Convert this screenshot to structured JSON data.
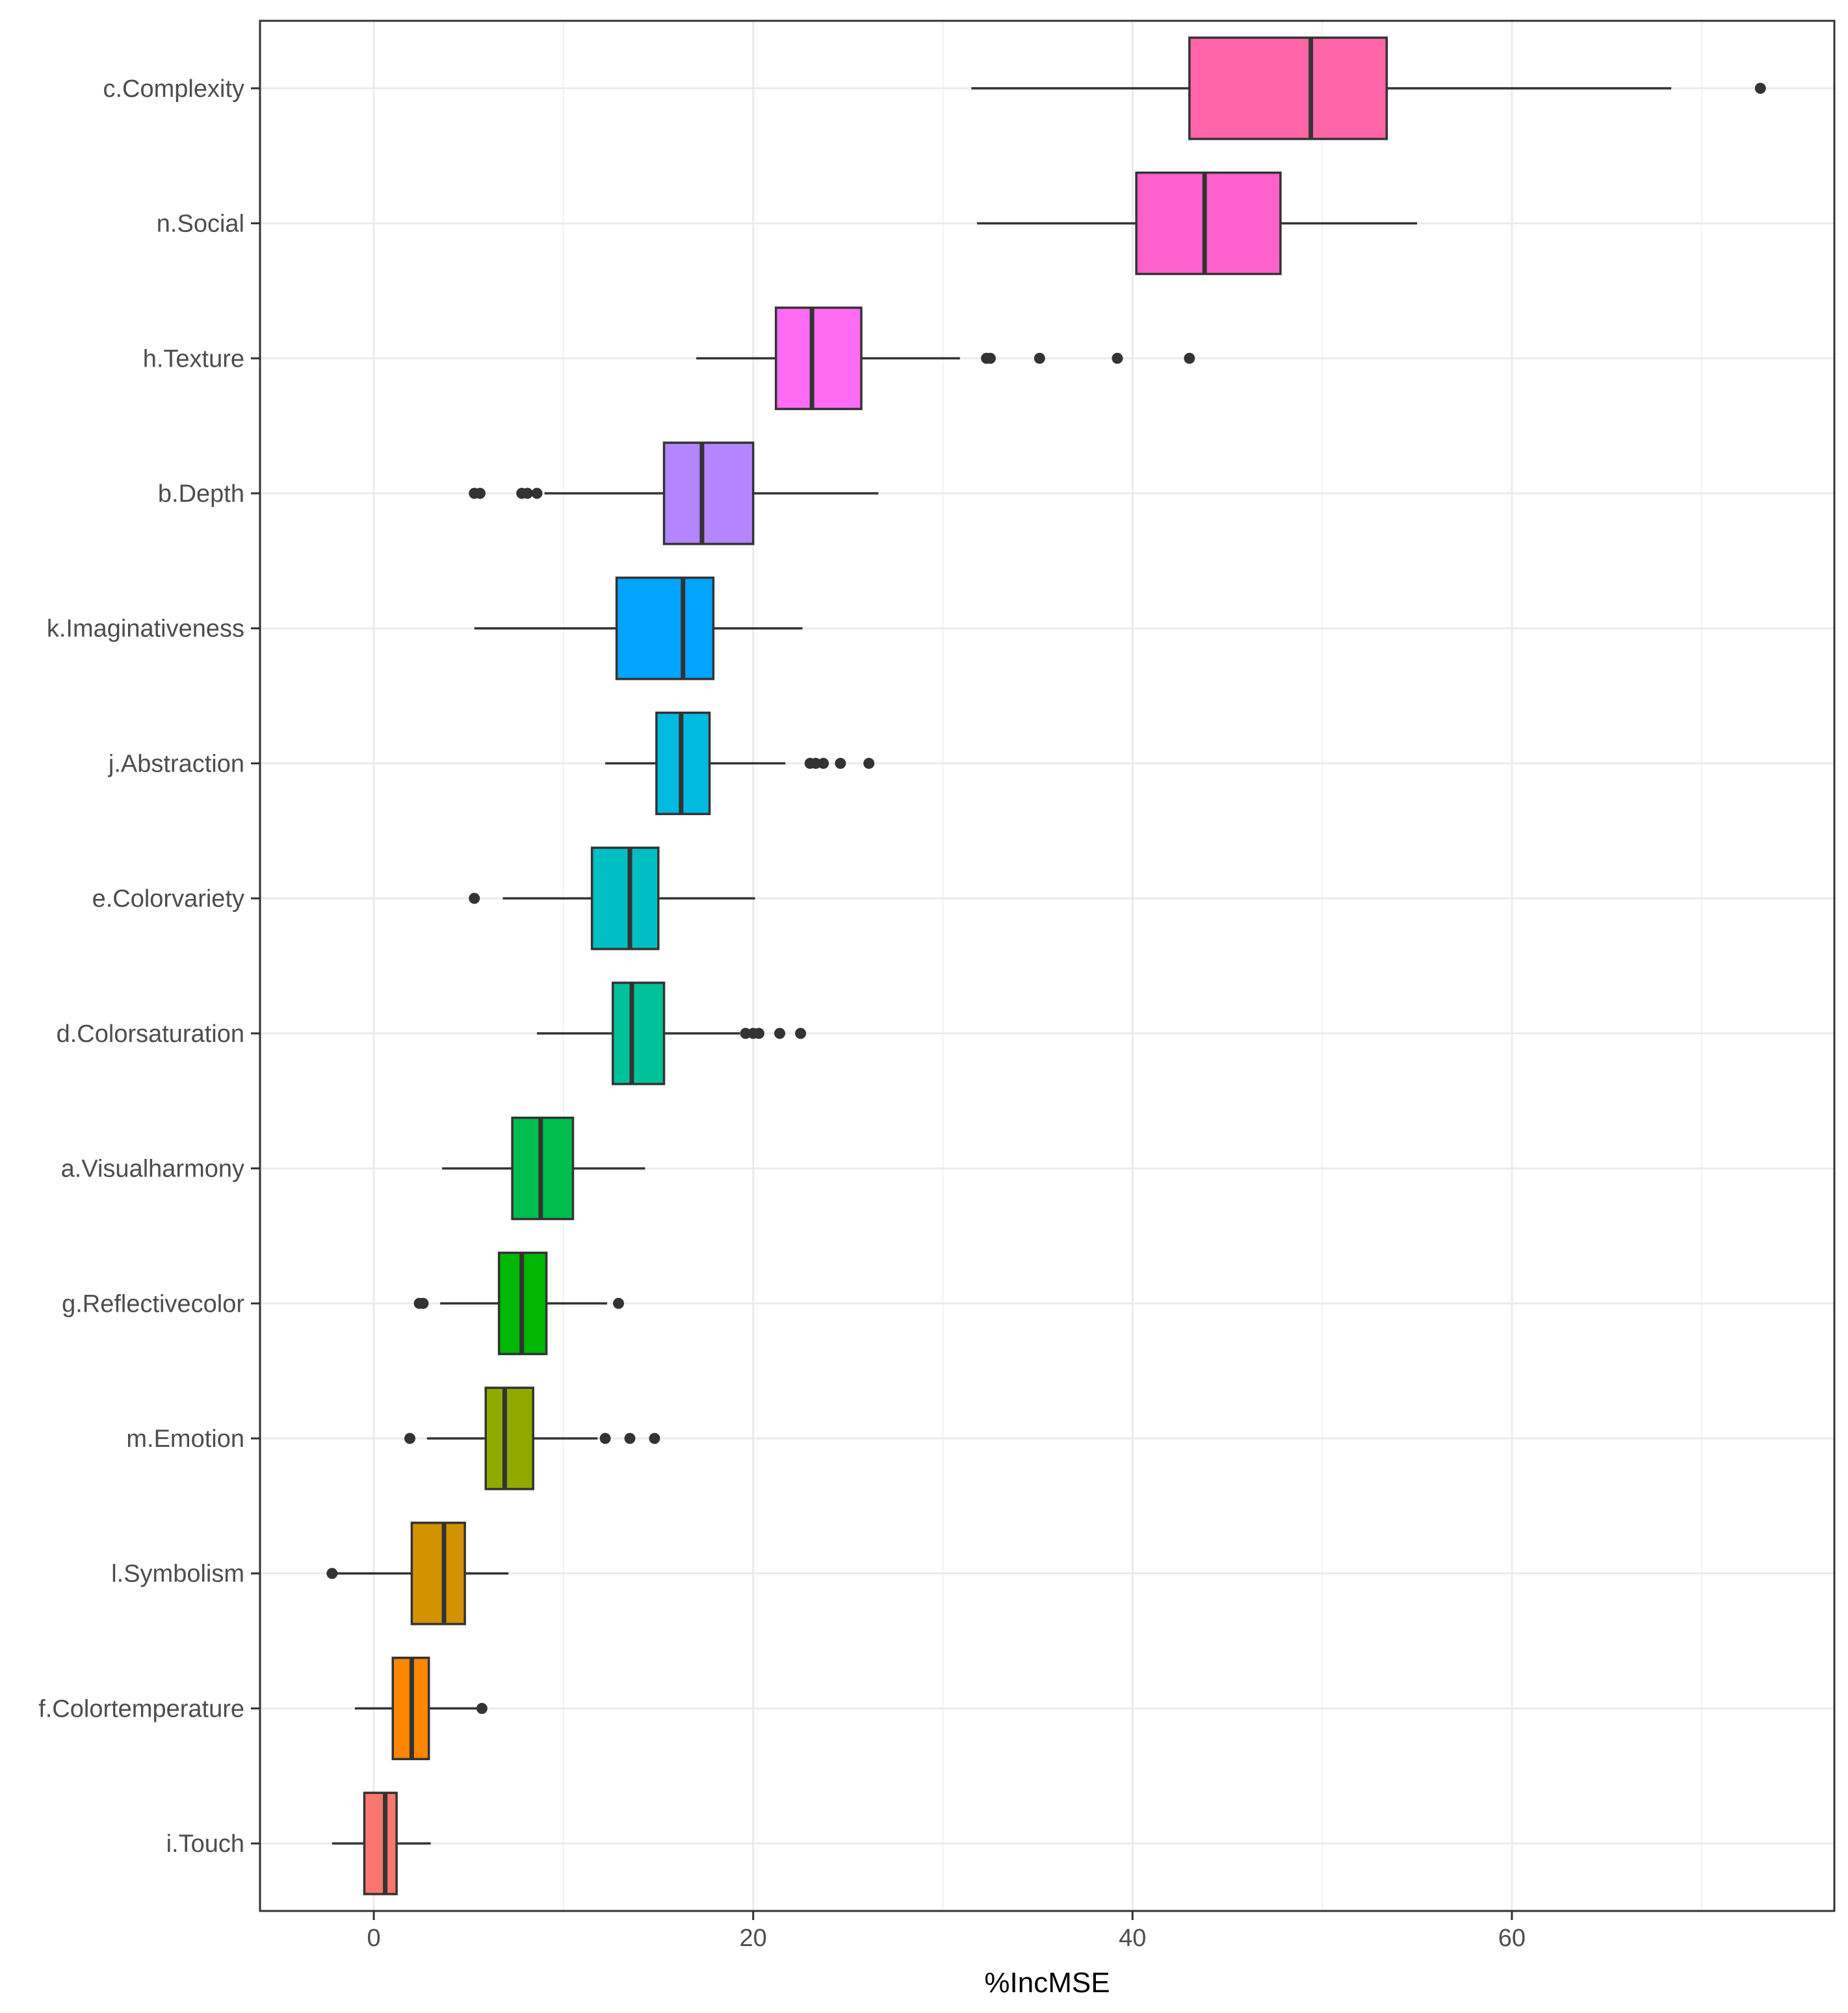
{
  "chart_data": {
    "type": "boxplot",
    "title": "",
    "xlabel": "%IncMSE",
    "ylabel": "",
    "xlim": [
      -6,
      77
    ],
    "x_ticks": [
      0,
      20,
      40,
      60
    ],
    "x_tick_labels": [
      "0",
      "20",
      "40",
      "60"
    ],
    "grid": true,
    "legend": "none",
    "series": [
      {
        "name": "c.Complexity",
        "color": "#FF66A8",
        "whisker_low": 31.5,
        "q1": 43.0,
        "median": 49.4,
        "q3": 53.4,
        "whisker_high": 68.4,
        "outliers": [
          73.1
        ]
      },
      {
        "name": "n.Social",
        "color": "#FF61CC",
        "whisker_low": 31.8,
        "q1": 40.2,
        "median": 43.8,
        "q3": 47.8,
        "whisker_high": 55.0,
        "outliers": []
      },
      {
        "name": "h.Texture",
        "color": "#FF6CF3",
        "whisker_low": 17.0,
        "q1": 21.2,
        "median": 23.1,
        "q3": 25.7,
        "whisker_high": 30.9,
        "outliers": [
          32.3,
          32.5,
          35.1,
          39.2,
          43.0
        ]
      },
      {
        "name": "b.Depth",
        "color": "#B385FF",
        "whisker_low": 9.0,
        "q1": 15.3,
        "median": 17.3,
        "q3": 20.0,
        "whisker_high": 26.6,
        "outliers": [
          5.3,
          5.6,
          7.8,
          8.1,
          8.6
        ]
      },
      {
        "name": "k.Imaginativeness",
        "color": "#00A5FF",
        "whisker_low": 5.3,
        "q1": 12.8,
        "median": 16.3,
        "q3": 17.9,
        "whisker_high": 22.6,
        "outliers": []
      },
      {
        "name": "j.Abstraction",
        "color": "#00BAE0",
        "whisker_low": 12.2,
        "q1": 14.9,
        "median": 16.2,
        "q3": 17.7,
        "whisker_high": 21.7,
        "outliers": [
          23.0,
          23.3,
          23.7,
          24.6,
          26.1
        ]
      },
      {
        "name": "e.Colorvariety",
        "color": "#00BFC4",
        "whisker_low": 6.8,
        "q1": 11.5,
        "median": 13.5,
        "q3": 15.0,
        "whisker_high": 20.1,
        "outliers": [
          5.3
        ]
      },
      {
        "name": "d.Colorsaturation",
        "color": "#00C19A",
        "whisker_low": 8.6,
        "q1": 12.6,
        "median": 13.6,
        "q3": 15.3,
        "whisker_high": 19.3,
        "outliers": [
          19.6,
          20.0,
          20.3,
          21.4,
          22.5
        ]
      },
      {
        "name": "a.Visualharmony",
        "color": "#00BF4F",
        "whisker_low": 3.6,
        "q1": 7.3,
        "median": 8.8,
        "q3": 10.5,
        "whisker_high": 14.3,
        "outliers": []
      },
      {
        "name": "g.Reflectivecolor",
        "color": "#00B701",
        "whisker_low": 3.5,
        "q1": 6.6,
        "median": 7.8,
        "q3": 9.1,
        "whisker_high": 12.3,
        "outliers": [
          2.4,
          2.6,
          12.9
        ]
      },
      {
        "name": "m.Emotion",
        "color": "#90AA00",
        "whisker_low": 2.8,
        "q1": 5.9,
        "median": 6.9,
        "q3": 8.4,
        "whisker_high": 11.8,
        "outliers": [
          1.9,
          12.2,
          13.5,
          14.8
        ]
      },
      {
        "name": "l.Symbolism",
        "color": "#D39200",
        "whisker_low": -2.1,
        "q1": 2.0,
        "median": 3.7,
        "q3": 4.8,
        "whisker_high": 7.1,
        "outliers": [
          -2.2
        ]
      },
      {
        "name": "f.Colortemperature",
        "color": "#FF8600",
        "whisker_low": -1.0,
        "q1": 1.0,
        "median": 2.0,
        "q3": 2.9,
        "whisker_high": 5.6,
        "outliers": [
          5.7
        ]
      },
      {
        "name": "i.Touch",
        "color": "#F8766D",
        "whisker_low": -2.2,
        "q1": -0.5,
        "median": 0.6,
        "q3": 1.2,
        "whisker_high": 3.0,
        "outliers": []
      }
    ]
  }
}
